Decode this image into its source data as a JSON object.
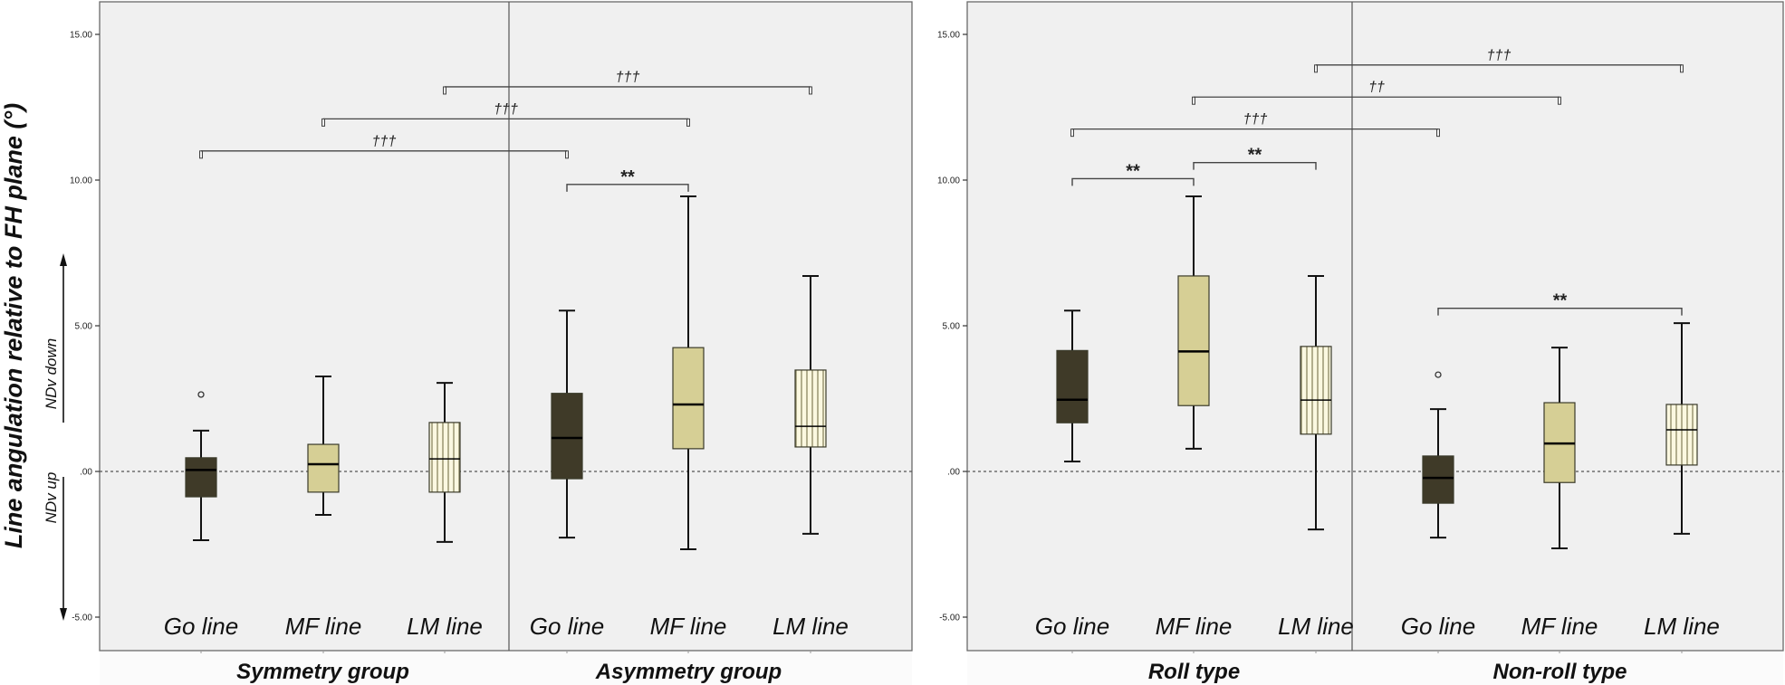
{
  "chart_data": {
    "type": "box",
    "ylabel": "Line angulation relative to FH plane (°)",
    "ylim": [
      -5.6,
      16.2
    ],
    "y_ticks": [
      15,
      10,
      5,
      0,
      -5
    ],
    "y_tick_labels": [
      "15.00",
      "10.00",
      "5.00",
      ".00",
      "-5.00"
    ],
    "reference_line": 0,
    "direction_labels": {
      "up_arrow": "NDv down",
      "down_arrow": "NDv up"
    },
    "series_styles": {
      "Go line": {
        "fill": "#3f3a28",
        "pattern": "solid"
      },
      "MF line": {
        "fill": "#d6cf95",
        "pattern": "solid"
      },
      "LM line": {
        "fill": "#fbf8e0",
        "pattern": "vertical-stripes",
        "stripe": "#8a8660"
      }
    },
    "panels": [
      {
        "name": "left",
        "groups": [
          {
            "label": "Symmetry group",
            "boxes": [
              {
                "category": "Go line",
                "whisker_low": -2.36,
                "q1": -0.87,
                "median": 0.05,
                "q3": 0.47,
                "whisker_high": 1.4,
                "outliers": [
                  2.64
                ]
              },
              {
                "category": "MF line",
                "whisker_low": -1.49,
                "q1": -0.71,
                "median": 0.25,
                "q3": 0.93,
                "whisker_high": 3.26,
                "outliers": []
              },
              {
                "category": "LM line",
                "whisker_low": -2.42,
                "q1": -0.71,
                "median": 0.43,
                "q3": 1.68,
                "whisker_high": 3.04,
                "outliers": []
              }
            ]
          },
          {
            "label": "Asymmetry group",
            "boxes": [
              {
                "category": "Go line",
                "whisker_low": -2.27,
                "q1": -0.25,
                "median": 1.15,
                "q3": 2.68,
                "whisker_high": 5.52,
                "outliers": []
              },
              {
                "category": "MF line",
                "whisker_low": -2.67,
                "q1": 0.78,
                "median": 2.3,
                "q3": 4.25,
                "whisker_high": 9.44,
                "outliers": []
              },
              {
                "category": "LM line",
                "whisker_low": -2.14,
                "q1": 0.84,
                "median": 1.55,
                "q3": 3.48,
                "whisker_high": 6.71,
                "outliers": []
              }
            ]
          }
        ],
        "comparisons": [
          {
            "from": [
              0,
              0
            ],
            "to": [
              1,
              0
            ],
            "label": "†††",
            "level": 11.0,
            "style": "dagger"
          },
          {
            "from": [
              0,
              1
            ],
            "to": [
              1,
              1
            ],
            "label": "†††",
            "level": 12.1,
            "style": "dagger"
          },
          {
            "from": [
              0,
              2
            ],
            "to": [
              1,
              2
            ],
            "label": "†††",
            "level": 13.2,
            "style": "dagger"
          },
          {
            "from": [
              1,
              0
            ],
            "to": [
              1,
              1
            ],
            "label": "**",
            "level": 9.85,
            "style": "star"
          }
        ]
      },
      {
        "name": "right",
        "groups": [
          {
            "label": "Roll type",
            "boxes": [
              {
                "category": "Go line",
                "whisker_low": 0.34,
                "q1": 1.67,
                "median": 2.46,
                "q3": 4.15,
                "whisker_high": 5.52,
                "outliers": []
              },
              {
                "category": "MF line",
                "whisker_low": 0.78,
                "q1": 2.26,
                "median": 4.12,
                "q3": 6.71,
                "whisker_high": 9.44,
                "outliers": []
              },
              {
                "category": "LM line",
                "whisker_low": -1.99,
                "q1": 1.28,
                "median": 2.45,
                "q3": 4.29,
                "whisker_high": 6.71,
                "outliers": []
              }
            ]
          },
          {
            "label": "Non-roll type",
            "boxes": [
              {
                "category": "Go line",
                "whisker_low": -2.27,
                "q1": -1.09,
                "median": -0.22,
                "q3": 0.53,
                "whisker_high": 2.14,
                "outliers": [
                  3.32
                ]
              },
              {
                "category": "MF line",
                "whisker_low": -2.64,
                "q1": -0.38,
                "median": 0.96,
                "q3": 2.36,
                "whisker_high": 4.25,
                "outliers": []
              },
              {
                "category": "LM line",
                "whisker_low": -2.14,
                "q1": 0.22,
                "median": 1.43,
                "q3": 2.3,
                "whisker_high": 5.09,
                "outliers": []
              }
            ]
          }
        ],
        "comparisons": [
          {
            "from": [
              0,
              0
            ],
            "to": [
              1,
              0
            ],
            "label": "†††",
            "level": 11.75,
            "style": "dagger"
          },
          {
            "from": [
              0,
              1
            ],
            "to": [
              1,
              1
            ],
            "label": "††",
            "level": 12.85,
            "style": "dagger"
          },
          {
            "from": [
              0,
              2
            ],
            "to": [
              1,
              2
            ],
            "label": "†††",
            "level": 13.95,
            "style": "dagger"
          },
          {
            "from": [
              0,
              0
            ],
            "to": [
              0,
              1
            ],
            "label": "**",
            "level": 10.05,
            "style": "star"
          },
          {
            "from": [
              0,
              1
            ],
            "to": [
              0,
              2
            ],
            "label": "**",
            "level": 10.6,
            "style": "star"
          },
          {
            "from": [
              1,
              0
            ],
            "to": [
              1,
              2
            ],
            "label": "**",
            "level": 5.6,
            "style": "star"
          }
        ]
      }
    ]
  }
}
